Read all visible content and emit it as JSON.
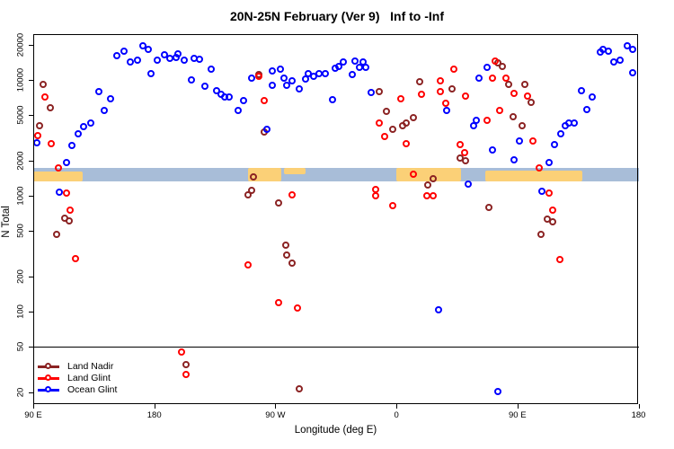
{
  "title": "20N-25N February (Ver 9)   Inf to -Inf",
  "axes": {
    "xlabel": "Longitude (deg E)",
    "ylabel": "N Total",
    "x_ticks": [
      {
        "deg": 90,
        "label": "90 E"
      },
      {
        "deg": 180,
        "label": "180"
      },
      {
        "deg": 270,
        "label": "90 W"
      },
      {
        "deg": 360,
        "label": "0"
      },
      {
        "deg": 450,
        "label": "90 E"
      },
      {
        "deg": 540,
        "label": "180"
      }
    ],
    "y_ticks": [
      20,
      50,
      100,
      200,
      500,
      1000,
      2000,
      5000,
      10000,
      20000
    ],
    "y_scale": "log",
    "x_range_deg": [
      90,
      540
    ],
    "note_x_axis": "longitude wraps eastward: 90E -> 180 -> 90W -> 0 -> 90E -> 180"
  },
  "legend": {
    "items": [
      {
        "label": "Land Nadir",
        "color": "#8B2323"
      },
      {
        "label": "Land Glint",
        "color": "#FF0000"
      },
      {
        "label": "Ocean Glint",
        "color": "#0000FF"
      }
    ]
  },
  "colors": {
    "land_nadir": "#8B2323",
    "land_glint": "#FF0000",
    "ocean_glint": "#0000FF",
    "map_ocean": "#A8BDD8",
    "map_land": "#FBD077",
    "reference_line": "#000000"
  },
  "chart_data": {
    "type": "scatter",
    "title": "20N-25N February (Ver 9)   Inf to -Inf",
    "xlabel": "Longitude (deg E)",
    "ylabel": "N Total",
    "ylim": [
      16,
      25000
    ],
    "reference_line_n": 50,
    "map_band": {
      "n_top": 1730,
      "n_bottom": 1330,
      "ocean_color": "#A8BDD8",
      "land_color": "#FBD077",
      "land_segments_deg": [
        {
          "from": 90,
          "to": 127,
          "top_frac": 0.25,
          "bot_frac": 1.0
        },
        {
          "from": 250,
          "to": 274.5,
          "top_frac": 0.0,
          "bot_frac": 1.0
        },
        {
          "from": 276.5,
          "to": 292.5,
          "top_frac": 0.0,
          "bot_frac": 0.45
        },
        {
          "from": 360,
          "to": 408,
          "top_frac": 0.0,
          "bot_frac": 1.0
        },
        {
          "from": 426,
          "to": 498,
          "top_frac": 0.18,
          "bot_frac": 1.0
        }
      ]
    },
    "series": [
      {
        "name": "Land Nadir",
        "color": "#8B2323",
        "points_deg_n": [
          [
            98,
            9000
          ],
          [
            103,
            5700
          ],
          [
            95,
            3950
          ],
          [
            114,
            630
          ],
          [
            117,
            600
          ],
          [
            108,
            460
          ],
          [
            258,
            10900
          ],
          [
            262,
            3500
          ],
          [
            254,
            1420
          ],
          [
            253,
            1090
          ],
          [
            250,
            1000
          ],
          [
            273,
            850
          ],
          [
            278,
            365
          ],
          [
            279,
            305
          ],
          [
            283,
            260
          ],
          [
            288,
            21
          ],
          [
            204,
            34
          ],
          [
            348,
            7800
          ],
          [
            353,
            5250
          ],
          [
            358,
            3650
          ],
          [
            365,
            3950
          ],
          [
            368,
            4150
          ],
          [
            373,
            4650
          ],
          [
            378,
            9450
          ],
          [
            384,
            1210
          ],
          [
            388,
            1370
          ],
          [
            402,
            8200
          ],
          [
            408,
            2070
          ],
          [
            412,
            1970
          ],
          [
            429,
            780
          ],
          [
            436,
            13750
          ],
          [
            439,
            12800
          ],
          [
            444,
            9000
          ],
          [
            447,
            4700
          ],
          [
            456,
            9000
          ],
          [
            461,
            6270
          ],
          [
            454,
            3950
          ],
          [
            473,
            620
          ],
          [
            477,
            590
          ],
          [
            468,
            460
          ]
        ]
      },
      {
        "name": "Land Glint",
        "color": "#FF0000",
        "points_deg_n": [
          [
            99,
            7000
          ],
          [
            94,
            3250
          ],
          [
            104,
            2750
          ],
          [
            109,
            1700
          ],
          [
            115,
            1030
          ],
          [
            118,
            735
          ],
          [
            122,
            280
          ],
          [
            258,
            10500
          ],
          [
            262,
            6500
          ],
          [
            283,
            1000
          ],
          [
            250,
            250
          ],
          [
            273,
            118
          ],
          [
            287,
            105
          ],
          [
            201,
            44
          ],
          [
            204,
            28
          ],
          [
            364,
            6700
          ],
          [
            379,
            7350
          ],
          [
            348,
            4150
          ],
          [
            352,
            3200
          ],
          [
            368,
            2750
          ],
          [
            393,
            9600
          ],
          [
            393,
            7800
          ],
          [
            403,
            12100
          ],
          [
            397,
            6150
          ],
          [
            412,
            7100
          ],
          [
            428,
            4400
          ],
          [
            437,
            5400
          ],
          [
            434,
            14200
          ],
          [
            408,
            2700
          ],
          [
            411,
            2310
          ],
          [
            373,
            1500
          ],
          [
            345,
            1110
          ],
          [
            345,
            980
          ],
          [
            383,
            980
          ],
          [
            388,
            980
          ],
          [
            358,
            810
          ],
          [
            432,
            10150
          ],
          [
            442,
            10150
          ],
          [
            448,
            7500
          ],
          [
            458,
            7100
          ],
          [
            462,
            2900
          ],
          [
            467,
            1700
          ],
          [
            474,
            1030
          ],
          [
            477,
            740
          ],
          [
            482,
            275
          ]
        ]
      },
      {
        "name": "Ocean Glint",
        "color": "#0000FF",
        "points_deg_n": [
          [
            93,
            2800
          ],
          [
            119,
            2650
          ],
          [
            115,
            1900
          ],
          [
            124,
            3350
          ],
          [
            128,
            3900
          ],
          [
            133,
            4150
          ],
          [
            139,
            7800
          ],
          [
            143,
            5350
          ],
          [
            148,
            6700
          ],
          [
            153,
            15900
          ],
          [
            158,
            17300
          ],
          [
            163,
            14000
          ],
          [
            168,
            14500
          ],
          [
            172,
            19300
          ],
          [
            176,
            18000
          ],
          [
            178,
            11100
          ],
          [
            183,
            14500
          ],
          [
            188,
            16100
          ],
          [
            192,
            15000
          ],
          [
            197,
            15300
          ],
          [
            198,
            16400
          ],
          [
            203,
            14500
          ],
          [
            210,
            15000
          ],
          [
            214,
            14750
          ],
          [
            223,
            12100
          ],
          [
            208,
            9800
          ],
          [
            218,
            8650
          ],
          [
            227,
            7900
          ],
          [
            230,
            7350
          ],
          [
            233,
            7000
          ],
          [
            236,
            7000
          ],
          [
            247,
            6500
          ],
          [
            243,
            5350
          ],
          [
            253,
            10150
          ],
          [
            268,
            11700
          ],
          [
            274,
            12100
          ],
          [
            268,
            8800
          ],
          [
            277,
            10150
          ],
          [
            279,
            8800
          ],
          [
            283,
            9600
          ],
          [
            288,
            8200
          ],
          [
            293,
            10000
          ],
          [
            295,
            11100
          ],
          [
            299,
            10500
          ],
          [
            303,
            11100
          ],
          [
            308,
            11100
          ],
          [
            315,
            12300
          ],
          [
            318,
            12800
          ],
          [
            313,
            6600
          ],
          [
            321,
            14000
          ],
          [
            330,
            14200
          ],
          [
            336,
            14000
          ],
          [
            333,
            12600
          ],
          [
            338,
            12600
          ],
          [
            328,
            11000
          ],
          [
            342,
            7700
          ],
          [
            264,
            3650
          ],
          [
            398,
            5400
          ],
          [
            422,
            10150
          ],
          [
            428,
            12600
          ],
          [
            418,
            3950
          ],
          [
            420,
            4400
          ],
          [
            432,
            2450
          ],
          [
            414,
            1240
          ],
          [
            452,
            2900
          ],
          [
            448,
            2000
          ],
          [
            474,
            1900
          ],
          [
            478,
            2700
          ],
          [
            483,
            3350
          ],
          [
            486,
            3950
          ],
          [
            489,
            4150
          ],
          [
            493,
            4200
          ],
          [
            498,
            7900
          ],
          [
            502,
            5500
          ],
          [
            506,
            7000
          ],
          [
            512,
            17100
          ],
          [
            514,
            18000
          ],
          [
            518,
            17300
          ],
          [
            522,
            14000
          ],
          [
            527,
            14500
          ],
          [
            532,
            19300
          ],
          [
            536,
            11300
          ],
          [
            536,
            18000
          ],
          [
            110,
            1050
          ],
          [
            469,
            1070
          ],
          [
            392,
            101
          ],
          [
            436,
            20
          ]
        ]
      }
    ]
  }
}
